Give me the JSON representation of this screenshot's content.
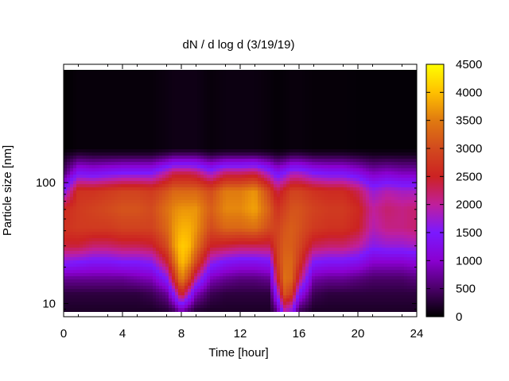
{
  "chart_data": {
    "type": "heatmap",
    "title": "dN / d log d (3/19/19)",
    "xlabel": "Time [hour]",
    "ylabel": "Particle size [nm]",
    "xlim": [
      0,
      24
    ],
    "ylim": [
      8,
      200
    ],
    "y_scale": "log",
    "x_ticks": [
      0,
      4,
      8,
      12,
      16,
      20,
      24
    ],
    "x_tick_labels": [
      "0",
      "4",
      "8",
      "12",
      "16",
      "20",
      "24"
    ],
    "y_ticks": [
      10,
      100
    ],
    "y_tick_labels": [
      "10",
      "100"
    ],
    "colorbar": {
      "range": [
        0,
        4500
      ],
      "ticks": [
        0,
        500,
        1000,
        1500,
        2000,
        2500,
        3000,
        3500,
        4000,
        4500
      ],
      "tick_labels": [
        "0",
        "500",
        "1000",
        "1500",
        "2000",
        "2500",
        "3000",
        "3500",
        "4000",
        "4500"
      ],
      "colormap": [
        "#000000",
        "#4a0068",
        "#8a00d0",
        "#7a19ff",
        "#c01f9c",
        "#cc2222",
        "#d24a1e",
        "#e07a10",
        "#ffc000",
        "#ffff00"
      ]
    },
    "grid": false,
    "size_nm": [
      9,
      12,
      16,
      22,
      30,
      42,
      60,
      85,
      120,
      170,
      190
    ],
    "time_hours": [
      0,
      1,
      2,
      3,
      4,
      5,
      6,
      7,
      7.5,
      8,
      8.5,
      9,
      10,
      11,
      12,
      13,
      14,
      14.5,
      15,
      15.5,
      16,
      17,
      18,
      19,
      20,
      21,
      22,
      23,
      24
    ],
    "values": [
      [
        200,
        300,
        700,
        1600,
        2400,
        2700,
        2600,
        1500,
        500,
        100,
        0
      ],
      [
        200,
        300,
        700,
        1500,
        2400,
        2800,
        2800,
        2700,
        1400,
        300,
        50
      ],
      [
        200,
        300,
        700,
        1400,
        2200,
        2800,
        2900,
        2700,
        1300,
        250,
        50
      ],
      [
        200,
        300,
        700,
        1400,
        2200,
        2800,
        3000,
        2800,
        1400,
        250,
        50
      ],
      [
        200,
        300,
        700,
        1500,
        2300,
        2900,
        3100,
        2900,
        1500,
        250,
        50
      ],
      [
        200,
        300,
        800,
        1500,
        2300,
        2900,
        3100,
        2900,
        1500,
        250,
        50
      ],
      [
        200,
        400,
        900,
        1600,
        2400,
        2900,
        3000,
        2800,
        1500,
        250,
        50
      ],
      [
        300,
        700,
        1500,
        2400,
        3000,
        3300,
        3400,
        3100,
        2000,
        400,
        80
      ],
      [
        500,
        1500,
        2600,
        3300,
        3700,
        3700,
        3600,
        3300,
        2300,
        500,
        100
      ],
      [
        1000,
        2600,
        3600,
        4000,
        4100,
        3900,
        3700,
        3300,
        2300,
        500,
        100
      ],
      [
        600,
        1800,
        3000,
        3700,
        4000,
        3900,
        3700,
        3300,
        2300,
        500,
        100
      ],
      [
        300,
        900,
        2000,
        3000,
        3500,
        3700,
        3700,
        3300,
        2200,
        500,
        100
      ],
      [
        200,
        400,
        900,
        1700,
        2500,
        3000,
        3200,
        3000,
        1700,
        300,
        50
      ],
      [
        200,
        300,
        700,
        1400,
        2400,
        3300,
        3600,
        3500,
        2200,
        400,
        80
      ],
      [
        200,
        300,
        600,
        1300,
        2300,
        3300,
        3600,
        3500,
        2200,
        400,
        80
      ],
      [
        200,
        300,
        600,
        1300,
        2300,
        3400,
        3800,
        3700,
        2300,
        400,
        80
      ],
      [
        200,
        300,
        700,
        1400,
        2300,
        3000,
        3200,
        2900,
        1700,
        300,
        50
      ],
      [
        700,
        1600,
        2400,
        2800,
        2900,
        2900,
        2700,
        2300,
        1300,
        200,
        30
      ],
      [
        2000,
        3100,
        3400,
        3300,
        3200,
        3100,
        2900,
        2600,
        1500,
        250,
        40
      ],
      [
        1700,
        2800,
        3300,
        3300,
        3200,
        3200,
        3100,
        2900,
        1800,
        350,
        60
      ],
      [
        500,
        1400,
        2300,
        2800,
        3000,
        3100,
        3100,
        2900,
        1800,
        350,
        60
      ],
      [
        200,
        400,
        800,
        1500,
        2300,
        2800,
        2900,
        2700,
        1500,
        250,
        40
      ],
      [
        200,
        300,
        700,
        1400,
        2200,
        2700,
        2800,
        2600,
        1400,
        250,
        40
      ],
      [
        200,
        300,
        700,
        1400,
        2200,
        2700,
        2800,
        2600,
        1400,
        250,
        40
      ],
      [
        200,
        300,
        600,
        1300,
        2000,
        2500,
        2600,
        2300,
        1200,
        200,
        30
      ],
      [
        200,
        300,
        500,
        1000,
        1600,
        1900,
        2000,
        1700,
        900,
        150,
        30
      ],
      [
        200,
        300,
        500,
        1000,
        1700,
        2100,
        2200,
        1900,
        1000,
        150,
        30
      ],
      [
        200,
        300,
        500,
        1000,
        1700,
        2100,
        2100,
        1800,
        900,
        150,
        30
      ],
      [
        200,
        300,
        600,
        1100,
        1800,
        2200,
        2200,
        1800,
        900,
        150,
        30
      ]
    ]
  }
}
